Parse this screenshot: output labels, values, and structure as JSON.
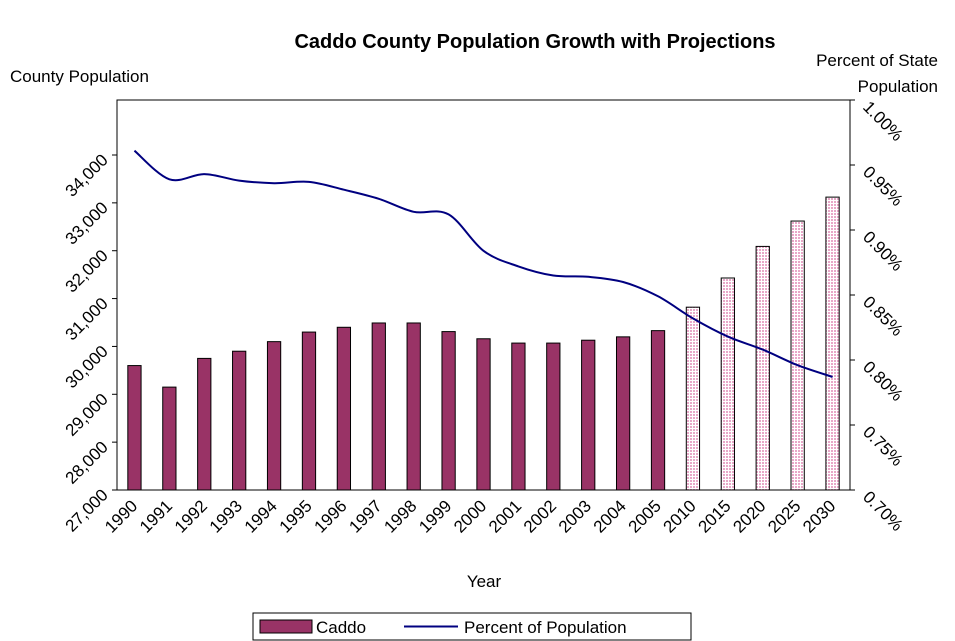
{
  "chart_data": {
    "type": "bar",
    "title": "Caddo County Population Growth with Projections",
    "xlabel": "Year",
    "ylabel": "County Population",
    "y2label_line1": "Percent of State",
    "y2label_line2": "Population",
    "categories": [
      "1990",
      "1991",
      "1992",
      "1993",
      "1994",
      "1995",
      "1996",
      "1997",
      "1998",
      "1999",
      "2000",
      "2001",
      "2002",
      "2003",
      "2004",
      "2005",
      "2010",
      "2015",
      "2020",
      "2025",
      "2030"
    ],
    "ylim": [
      27000,
      34000
    ],
    "y_ticks": [
      "27,000",
      "28,000",
      "29,000",
      "30,000",
      "31,000",
      "32,000",
      "33,000",
      "34,000"
    ],
    "y2lim": [
      0.7,
      1.0
    ],
    "y2_ticks": [
      "0.70%",
      "0.75%",
      "0.80%",
      "0.85%",
      "0.90%",
      "0.95%",
      "1.00%"
    ],
    "projection_start_index": 16,
    "series": [
      {
        "name": "Caddo",
        "kind": "bar",
        "axis": "left",
        "values": [
          29600,
          29150,
          29750,
          29900,
          30100,
          30300,
          30400,
          30490,
          30490,
          30310,
          30160,
          30070,
          30070,
          30130,
          30200,
          30330,
          30820,
          31430,
          32090,
          32620,
          33120
        ]
      },
      {
        "name": "Percent of Population",
        "kind": "line",
        "axis": "right",
        "values": [
          0.961,
          0.939,
          0.943,
          0.938,
          0.936,
          0.937,
          0.931,
          0.924,
          0.914,
          0.912,
          0.884,
          0.872,
          0.865,
          0.864,
          0.86,
          0.849,
          0.832,
          0.818,
          0.808,
          0.796,
          0.787
        ]
      }
    ],
    "legend_position": "bottom",
    "colors": {
      "bar": "#993366",
      "projection_fill": "#f4c9de",
      "line": "#000080"
    }
  }
}
